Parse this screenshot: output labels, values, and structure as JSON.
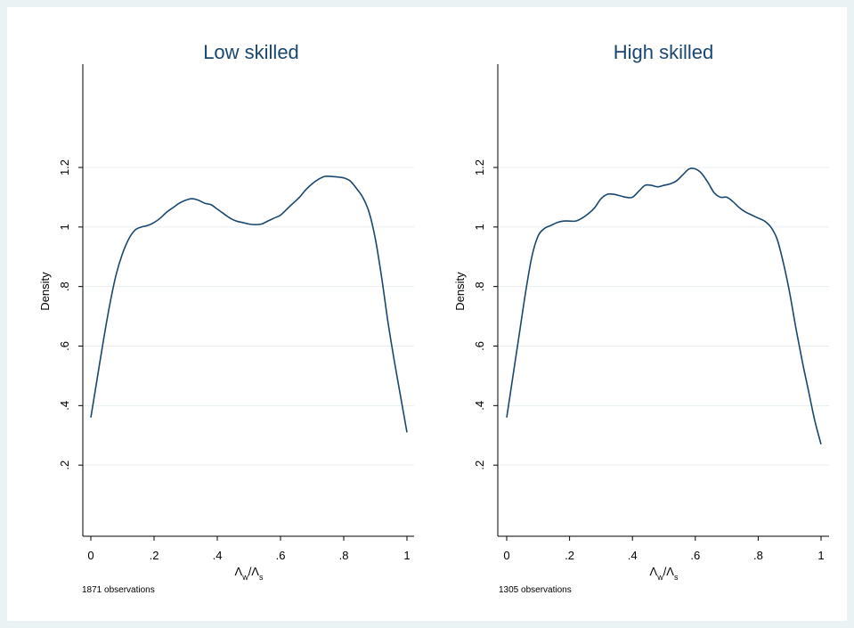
{
  "chart_data": [
    {
      "type": "line",
      "title": "Low skilled",
      "xlabel": "Λw/Λs",
      "ylabel": "Density",
      "note": "1871 observations",
      "xlim": [
        0,
        1
      ],
      "ylim": [
        0,
        1.2
      ],
      "xticks": [
        0,
        0.2,
        0.4,
        0.6,
        0.8,
        1
      ],
      "xtick_labels": [
        "0",
        ".2",
        ".4",
        ".6",
        ".8",
        "1"
      ],
      "yticks": [
        0.2,
        0.4,
        0.6,
        0.8,
        1,
        1.2
      ],
      "ytick_labels": [
        ".2",
        ".4",
        ".6",
        ".8",
        "1",
        "1.2"
      ],
      "grid": true,
      "line_color": "#1a476f",
      "series": [
        {
          "x": [
            0,
            0.02,
            0.04,
            0.06,
            0.08,
            0.1,
            0.12,
            0.14,
            0.16,
            0.18,
            0.2,
            0.22,
            0.24,
            0.26,
            0.28,
            0.3,
            0.32,
            0.34,
            0.36,
            0.38,
            0.4,
            0.42,
            0.44,
            0.46,
            0.48,
            0.5,
            0.52,
            0.54,
            0.56,
            0.58,
            0.6,
            0.62,
            0.64,
            0.66,
            0.68,
            0.7,
            0.72,
            0.74,
            0.76,
            0.78,
            0.8,
            0.82,
            0.84,
            0.86,
            0.88,
            0.9,
            0.92,
            0.94,
            0.96,
            0.98,
            1.0
          ],
          "y": [
            0.36,
            0.49,
            0.62,
            0.74,
            0.84,
            0.91,
            0.96,
            0.99,
            1.0,
            1.005,
            1.015,
            1.03,
            1.05,
            1.065,
            1.08,
            1.09,
            1.095,
            1.09,
            1.08,
            1.075,
            1.06,
            1.045,
            1.03,
            1.02,
            1.015,
            1.01,
            1.008,
            1.01,
            1.02,
            1.03,
            1.04,
            1.06,
            1.08,
            1.1,
            1.125,
            1.145,
            1.16,
            1.17,
            1.17,
            1.168,
            1.165,
            1.155,
            1.13,
            1.1,
            1.05,
            0.96,
            0.83,
            0.68,
            0.55,
            0.43,
            0.31
          ]
        }
      ]
    },
    {
      "type": "line",
      "title": "High skilled",
      "xlabel": "Λw/Λs",
      "ylabel": "Density",
      "note": "1305 observations",
      "xlim": [
        0,
        1
      ],
      "ylim": [
        0,
        1.2
      ],
      "xticks": [
        0,
        0.2,
        0.4,
        0.6,
        0.8,
        1
      ],
      "xtick_labels": [
        "0",
        ".2",
        ".4",
        ".6",
        ".8",
        "1"
      ],
      "yticks": [
        0.2,
        0.4,
        0.6,
        0.8,
        1,
        1.2
      ],
      "ytick_labels": [
        ".2",
        ".4",
        ".6",
        ".8",
        "1",
        "1.2"
      ],
      "grid": true,
      "line_color": "#1a476f",
      "series": [
        {
          "x": [
            0,
            0.02,
            0.04,
            0.06,
            0.08,
            0.1,
            0.12,
            0.14,
            0.16,
            0.18,
            0.2,
            0.22,
            0.24,
            0.26,
            0.28,
            0.3,
            0.32,
            0.34,
            0.36,
            0.38,
            0.4,
            0.42,
            0.44,
            0.46,
            0.48,
            0.5,
            0.52,
            0.54,
            0.56,
            0.58,
            0.6,
            0.62,
            0.64,
            0.66,
            0.68,
            0.7,
            0.72,
            0.74,
            0.76,
            0.78,
            0.8,
            0.82,
            0.84,
            0.86,
            0.88,
            0.9,
            0.92,
            0.94,
            0.96,
            0.98,
            1.0
          ],
          "y": [
            0.36,
            0.5,
            0.64,
            0.78,
            0.9,
            0.97,
            0.995,
            1.005,
            1.015,
            1.02,
            1.02,
            1.02,
            1.03,
            1.045,
            1.065,
            1.095,
            1.11,
            1.11,
            1.105,
            1.1,
            1.1,
            1.12,
            1.14,
            1.14,
            1.135,
            1.14,
            1.145,
            1.155,
            1.175,
            1.195,
            1.195,
            1.18,
            1.15,
            1.115,
            1.1,
            1.1,
            1.085,
            1.065,
            1.05,
            1.04,
            1.03,
            1.02,
            1.0,
            0.96,
            0.88,
            0.78,
            0.66,
            0.55,
            0.45,
            0.35,
            0.27
          ]
        }
      ]
    }
  ]
}
